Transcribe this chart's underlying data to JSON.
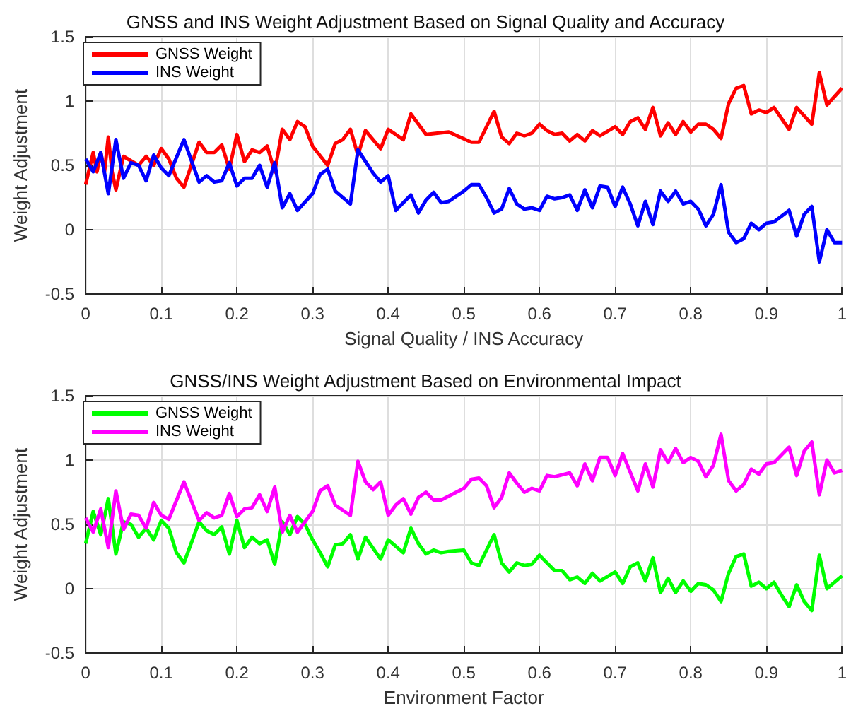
{
  "chart_data": [
    {
      "type": "line",
      "title": "GNSS and INS Weight Adjustment Based on Signal Quality and Accuracy",
      "xlabel": "Signal Quality / INS Accuracy",
      "ylabel": "Weight Adjustment",
      "xlim": [
        0,
        1
      ],
      "ylim": [
        -0.5,
        1.5
      ],
      "xticks": [
        0,
        0.1,
        0.2,
        0.3,
        0.4,
        0.5,
        0.6,
        0.7,
        0.8,
        0.9,
        1
      ],
      "yticks": [
        -0.5,
        0,
        0.5,
        1,
        1.5
      ],
      "grid": true,
      "legend": "top left",
      "series": [
        {
          "name": "GNSS Weight",
          "color": "#ff0000",
          "x": [
            0,
            0.01,
            0.015,
            0.02,
            0.025,
            0.03,
            0.035,
            0.04,
            0.05,
            0.07,
            0.08,
            0.09,
            0.1,
            0.11,
            0.12,
            0.13,
            0.15,
            0.16,
            0.17,
            0.18,
            0.19,
            0.2,
            0.21,
            0.22,
            0.23,
            0.24,
            0.25,
            0.26,
            0.27,
            0.28,
            0.29,
            0.3,
            0.32,
            0.33,
            0.34,
            0.35,
            0.36,
            0.37,
            0.39,
            0.4,
            0.42,
            0.43,
            0.45,
            0.48,
            0.51,
            0.52,
            0.54,
            0.55,
            0.56,
            0.57,
            0.58,
            0.59,
            0.6,
            0.61,
            0.62,
            0.63,
            0.64,
            0.65,
            0.66,
            0.67,
            0.68,
            0.7,
            0.71,
            0.72,
            0.73,
            0.74,
            0.75,
            0.76,
            0.77,
            0.78,
            0.79,
            0.8,
            0.81,
            0.82,
            0.83,
            0.84,
            0.85,
            0.86,
            0.87,
            0.88,
            0.89,
            0.9,
            0.91,
            0.93,
            0.94,
            0.96,
            0.97,
            0.98,
            1
          ],
          "values": [
            0.35,
            0.6,
            0.45,
            0.6,
            0.45,
            0.72,
            0.45,
            0.31,
            0.57,
            0.5,
            0.57,
            0.5,
            0.63,
            0.55,
            0.4,
            0.33,
            0.68,
            0.6,
            0.6,
            0.66,
            0.47,
            0.74,
            0.53,
            0.62,
            0.6,
            0.65,
            0.45,
            0.78,
            0.7,
            0.84,
            0.8,
            0.65,
            0.5,
            0.67,
            0.7,
            0.78,
            0.58,
            0.77,
            0.63,
            0.78,
            0.7,
            0.9,
            0.74,
            0.76,
            0.68,
            0.68,
            0.92,
            0.72,
            0.67,
            0.75,
            0.73,
            0.75,
            0.82,
            0.77,
            0.74,
            0.75,
            0.69,
            0.74,
            0.69,
            0.77,
            0.73,
            0.8,
            0.74,
            0.84,
            0.87,
            0.78,
            0.95,
            0.73,
            0.83,
            0.74,
            0.84,
            0.76,
            0.82,
            0.82,
            0.78,
            0.71,
            0.98,
            1.1,
            1.12,
            0.9,
            0.93,
            0.91,
            0.95,
            0.78,
            0.95,
            0.82,
            1.22,
            0.97,
            1.1
          ]
        },
        {
          "name": "INS Weight",
          "color": "#0000ff",
          "x": [
            0,
            0.01,
            0.02,
            0.03,
            0.04,
            0.05,
            0.06,
            0.07,
            0.08,
            0.09,
            0.1,
            0.11,
            0.13,
            0.15,
            0.16,
            0.17,
            0.18,
            0.19,
            0.2,
            0.21,
            0.22,
            0.23,
            0.24,
            0.25,
            0.26,
            0.27,
            0.28,
            0.3,
            0.31,
            0.32,
            0.33,
            0.35,
            0.36,
            0.38,
            0.39,
            0.4,
            0.41,
            0.43,
            0.44,
            0.45,
            0.46,
            0.47,
            0.48,
            0.5,
            0.51,
            0.52,
            0.53,
            0.54,
            0.55,
            0.56,
            0.57,
            0.58,
            0.59,
            0.6,
            0.61,
            0.62,
            0.63,
            0.64,
            0.65,
            0.66,
            0.67,
            0.68,
            0.69,
            0.7,
            0.71,
            0.72,
            0.73,
            0.74,
            0.75,
            0.76,
            0.77,
            0.78,
            0.79,
            0.8,
            0.81,
            0.82,
            0.83,
            0.84,
            0.85,
            0.86,
            0.87,
            0.88,
            0.89,
            0.9,
            0.91,
            0.93,
            0.94,
            0.95,
            0.96,
            0.97,
            0.98,
            0.99,
            1
          ],
          "values": [
            0.55,
            0.45,
            0.6,
            0.28,
            0.7,
            0.4,
            0.52,
            0.5,
            0.38,
            0.58,
            0.48,
            0.42,
            0.7,
            0.37,
            0.42,
            0.37,
            0.38,
            0.52,
            0.34,
            0.4,
            0.4,
            0.5,
            0.33,
            0.52,
            0.17,
            0.28,
            0.15,
            0.28,
            0.43,
            0.47,
            0.3,
            0.2,
            0.62,
            0.44,
            0.37,
            0.42,
            0.15,
            0.27,
            0.13,
            0.23,
            0.29,
            0.21,
            0.22,
            0.3,
            0.35,
            0.35,
            0.25,
            0.13,
            0.16,
            0.32,
            0.2,
            0.16,
            0.17,
            0.15,
            0.26,
            0.24,
            0.25,
            0.27,
            0.15,
            0.31,
            0.17,
            0.34,
            0.33,
            0.18,
            0.33,
            0.2,
            0.03,
            0.22,
            0.04,
            0.3,
            0.22,
            0.3,
            0.2,
            0.22,
            0.16,
            0.03,
            0.12,
            0.35,
            -0.02,
            -0.1,
            -0.07,
            0.05,
            0,
            0.05,
            0.06,
            0.15,
            -0.05,
            0.12,
            0.18,
            -0.25,
            0,
            -0.1,
            -0.1
          ]
        }
      ]
    },
    {
      "type": "line",
      "title": "GNSS/INS Weight Adjustment Based on Environmental Impact",
      "xlabel": "Environment Factor",
      "ylabel": "Weight Adjustment",
      "xlim": [
        0,
        1
      ],
      "ylim": [
        -0.5,
        1.5
      ],
      "xticks": [
        0,
        0.1,
        0.2,
        0.3,
        0.4,
        0.5,
        0.6,
        0.7,
        0.8,
        0.9,
        1
      ],
      "yticks": [
        -0.5,
        0,
        0.5,
        1,
        1.5
      ],
      "grid": true,
      "legend": "top left",
      "series": [
        {
          "name": "GNSS Weight",
          "color": "#00ff00",
          "x": [
            0,
            0.01,
            0.02,
            0.03,
            0.04,
            0.05,
            0.06,
            0.07,
            0.08,
            0.09,
            0.1,
            0.11,
            0.12,
            0.13,
            0.15,
            0.16,
            0.17,
            0.18,
            0.19,
            0.2,
            0.21,
            0.22,
            0.23,
            0.24,
            0.25,
            0.26,
            0.27,
            0.28,
            0.29,
            0.3,
            0.31,
            0.32,
            0.33,
            0.34,
            0.35,
            0.36,
            0.37,
            0.39,
            0.4,
            0.42,
            0.43,
            0.44,
            0.45,
            0.46,
            0.47,
            0.48,
            0.5,
            0.51,
            0.52,
            0.54,
            0.55,
            0.56,
            0.57,
            0.58,
            0.59,
            0.6,
            0.62,
            0.63,
            0.64,
            0.65,
            0.66,
            0.67,
            0.68,
            0.7,
            0.71,
            0.72,
            0.73,
            0.74,
            0.75,
            0.76,
            0.77,
            0.78,
            0.79,
            0.8,
            0.81,
            0.82,
            0.83,
            0.84,
            0.85,
            0.86,
            0.87,
            0.88,
            0.89,
            0.9,
            0.91,
            0.92,
            0.93,
            0.94,
            0.95,
            0.96,
            0.97,
            0.98,
            1
          ],
          "values": [
            0.35,
            0.6,
            0.42,
            0.7,
            0.27,
            0.52,
            0.5,
            0.4,
            0.47,
            0.38,
            0.53,
            0.47,
            0.28,
            0.2,
            0.52,
            0.45,
            0.42,
            0.48,
            0.27,
            0.53,
            0.32,
            0.4,
            0.35,
            0.38,
            0.19,
            0.52,
            0.42,
            0.56,
            0.5,
            0.38,
            0.28,
            0.17,
            0.34,
            0.35,
            0.42,
            0.23,
            0.4,
            0.23,
            0.38,
            0.28,
            0.47,
            0.35,
            0.27,
            0.3,
            0.28,
            0.29,
            0.3,
            0.2,
            0.18,
            0.42,
            0.2,
            0.13,
            0.2,
            0.18,
            0.19,
            0.26,
            0.14,
            0.14,
            0.07,
            0.09,
            0.04,
            0.12,
            0.06,
            0.13,
            0.04,
            0.17,
            0.2,
            0.06,
            0.24,
            -0.03,
            0.08,
            -0.03,
            0.06,
            -0.02,
            0.04,
            0.03,
            -0.01,
            -0.1,
            0.12,
            0.25,
            0.27,
            0.02,
            0.05,
            0,
            0.05,
            -0.05,
            -0.14,
            0.03,
            -0.1,
            -0.17,
            0.26,
            0,
            0.1
          ]
        },
        {
          "name": "INS Weight",
          "color": "#ff00ff",
          "x": [
            0,
            0.01,
            0.02,
            0.03,
            0.04,
            0.05,
            0.06,
            0.07,
            0.08,
            0.09,
            0.1,
            0.11,
            0.13,
            0.15,
            0.16,
            0.17,
            0.18,
            0.19,
            0.2,
            0.21,
            0.22,
            0.23,
            0.24,
            0.25,
            0.26,
            0.27,
            0.28,
            0.3,
            0.31,
            0.32,
            0.33,
            0.35,
            0.36,
            0.37,
            0.38,
            0.39,
            0.4,
            0.41,
            0.42,
            0.43,
            0.44,
            0.45,
            0.46,
            0.47,
            0.48,
            0.5,
            0.51,
            0.52,
            0.53,
            0.54,
            0.55,
            0.56,
            0.57,
            0.58,
            0.59,
            0.6,
            0.61,
            0.62,
            0.64,
            0.65,
            0.66,
            0.67,
            0.68,
            0.69,
            0.7,
            0.71,
            0.73,
            0.74,
            0.75,
            0.76,
            0.77,
            0.78,
            0.79,
            0.8,
            0.81,
            0.82,
            0.83,
            0.84,
            0.85,
            0.86,
            0.87,
            0.88,
            0.89,
            0.9,
            0.91,
            0.93,
            0.94,
            0.95,
            0.96,
            0.97,
            0.98,
            0.99,
            1
          ],
          "values": [
            0.55,
            0.44,
            0.62,
            0.32,
            0.76,
            0.46,
            0.58,
            0.57,
            0.47,
            0.67,
            0.57,
            0.54,
            0.83,
            0.53,
            0.59,
            0.55,
            0.57,
            0.74,
            0.56,
            0.62,
            0.63,
            0.73,
            0.6,
            0.79,
            0.44,
            0.57,
            0.44,
            0.6,
            0.76,
            0.8,
            0.65,
            0.57,
            0.99,
            0.83,
            0.77,
            0.83,
            0.57,
            0.65,
            0.7,
            0.58,
            0.71,
            0.75,
            0.69,
            0.69,
            0.72,
            0.78,
            0.85,
            0.86,
            0.8,
            0.63,
            0.71,
            0.9,
            0.82,
            0.75,
            0.78,
            0.76,
            0.88,
            0.87,
            0.9,
            0.8,
            0.97,
            0.84,
            1.02,
            1.02,
            0.88,
            1.05,
            0.76,
            0.97,
            0.79,
            1.08,
            0.98,
            1.09,
            0.98,
            1.02,
            0.99,
            0.87,
            0.96,
            1.2,
            0.84,
            0.76,
            0.81,
            0.93,
            0.89,
            0.97,
            0.98,
            1.1,
            0.88,
            1.07,
            1.14,
            0.73,
            1,
            0.9,
            0.92
          ]
        }
      ]
    }
  ]
}
